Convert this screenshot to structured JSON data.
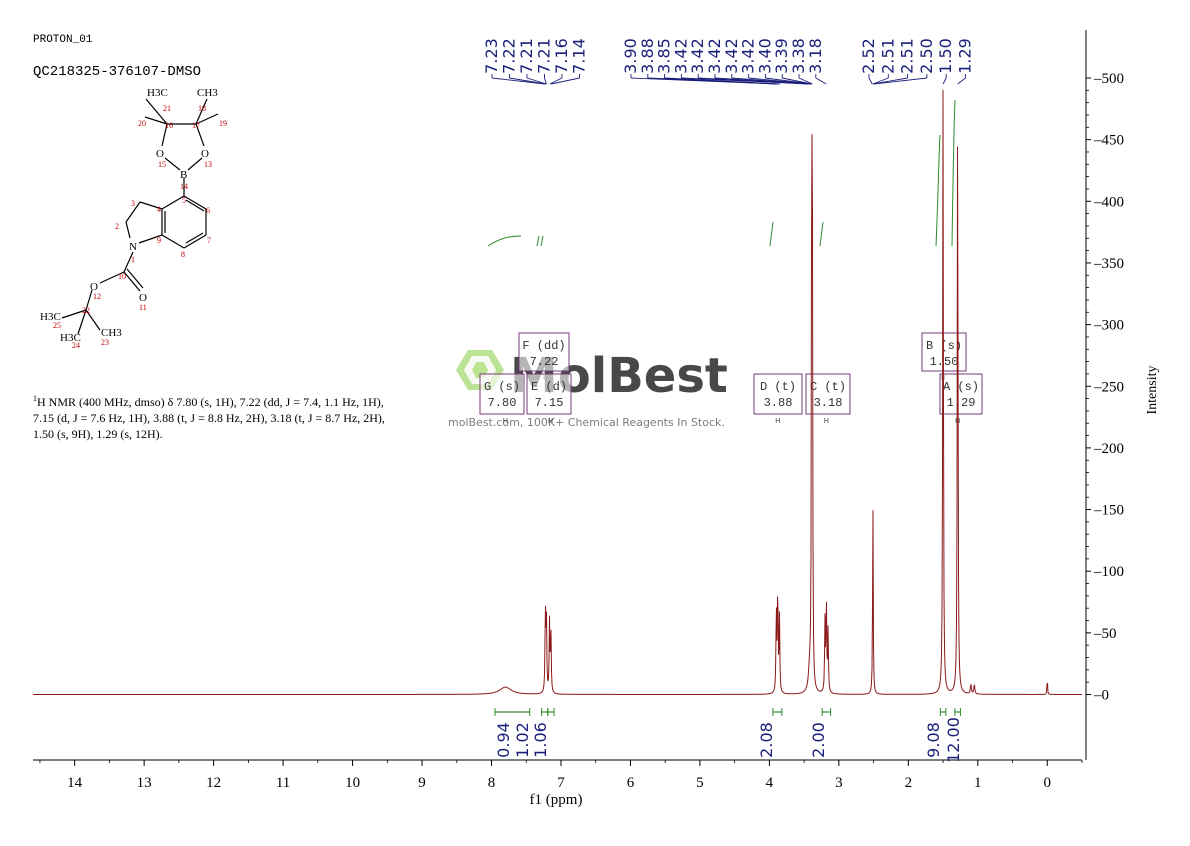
{
  "header": {
    "proton_label": "PROTON_01",
    "sample_id": "QC218325-376107-DMSO"
  },
  "nmr_description": {
    "superscript": "1",
    "text": "H NMR (400 MHz, dmso) δ 7.80 (s, 1H), 7.22 (dd, J = 7.4, 1.1 Hz, 1H), 7.15 (d, J = 7.6 Hz, 1H), 3.88 (t, J = 8.8 Hz, 2H), 3.18 (t, J = 8.7 Hz, 2H), 1.50 (s, 9H), 1.29 (s, 12H)."
  },
  "watermark": {
    "brand": "MolBest",
    "tagline": "molBest.com, 100K+ Chemical Reagents In Stock."
  },
  "structure": {
    "atoms": [
      "H3C",
      "CH3",
      "O",
      "O",
      "B",
      "N",
      "O",
      "O",
      "H3C",
      "H3C",
      "CH3"
    ],
    "numbers": [
      "21",
      "18",
      "20",
      "16",
      "17",
      "19",
      "15",
      "13",
      "14",
      "5",
      "3",
      "4",
      "6",
      "2",
      "9",
      "7",
      "1",
      "8",
      "10",
      "12",
      "11",
      "22",
      "25",
      "24",
      "23"
    ]
  },
  "chart_data": {
    "type": "line",
    "title": "",
    "xlabel": "f1 (ppm)",
    "ylabel": "Intensity",
    "xlim": [
      14.6,
      -0.5
    ],
    "ylim": [
      -56,
      540
    ],
    "x_ticks": [
      "14",
      "13",
      "12",
      "11",
      "10",
      "9",
      "8",
      "7",
      "6",
      "5",
      "4",
      "3",
      "2",
      "1",
      "0"
    ],
    "y_ticks": [
      "0",
      "50",
      "100",
      "150",
      "200",
      "250",
      "300",
      "350",
      "400",
      "450",
      "500"
    ],
    "colors": {
      "spectrum": "#8b1a1a",
      "labels": "#1a1f7a",
      "integral": "#2e8b2e",
      "multiplet": "#7a3a7a"
    },
    "peaks": [
      {
        "ppm": 7.8,
        "height": 6,
        "width": 0.1
      },
      {
        "ppm": 7.225,
        "height": 68,
        "width": 0.006
      },
      {
        "ppm": 7.21,
        "height": 62,
        "width": 0.006
      },
      {
        "ppm": 7.165,
        "height": 58,
        "width": 0.006
      },
      {
        "ppm": 7.145,
        "height": 50,
        "width": 0.006
      },
      {
        "ppm": 3.9,
        "height": 70,
        "width": 0.006
      },
      {
        "ppm": 3.88,
        "height": 88,
        "width": 0.006
      },
      {
        "ppm": 3.855,
        "height": 62,
        "width": 0.006
      },
      {
        "ppm": 3.42,
        "height": 18,
        "width": 0.02
      },
      {
        "ppm": 3.39,
        "height": 500,
        "width": 0.005
      },
      {
        "ppm": 3.38,
        "height": 300,
        "width": 0.005
      },
      {
        "ppm": 3.2,
        "height": 58,
        "width": 0.006
      },
      {
        "ppm": 3.18,
        "height": 76,
        "width": 0.006
      },
      {
        "ppm": 3.155,
        "height": 52,
        "width": 0.006
      },
      {
        "ppm": 2.51,
        "height": 163,
        "width": 0.005
      },
      {
        "ppm": 1.5,
        "height": 500,
        "width": 0.006
      },
      {
        "ppm": 1.29,
        "height": 500,
        "width": 0.006
      },
      {
        "ppm": 1.1,
        "height": 8,
        "width": 0.008
      },
      {
        "ppm": 1.05,
        "height": 8,
        "width": 0.008
      },
      {
        "ppm": 0.0,
        "height": 16,
        "width": 0.004
      }
    ],
    "peak_labels": [
      {
        "label": "7.23",
        "ppm": 7.23
      },
      {
        "label": "7.22",
        "ppm": 7.22
      },
      {
        "label": "7.21",
        "ppm": 7.21
      },
      {
        "label": "7.21",
        "ppm": 7.21
      },
      {
        "label": "7.16",
        "ppm": 7.16
      },
      {
        "label": "7.14",
        "ppm": 7.14
      },
      {
        "label": "3.90",
        "ppm": 3.9
      },
      {
        "label": "3.88",
        "ppm": 3.88
      },
      {
        "label": "3.85",
        "ppm": 3.85
      },
      {
        "label": "3.42",
        "ppm": 3.42
      },
      {
        "label": "3.42",
        "ppm": 3.42
      },
      {
        "label": "3.42",
        "ppm": 3.42
      },
      {
        "label": "3.42",
        "ppm": 3.42
      },
      {
        "label": "3.42",
        "ppm": 3.42
      },
      {
        "label": "3.40",
        "ppm": 3.4
      },
      {
        "label": "3.39",
        "ppm": 3.39
      },
      {
        "label": "3.38",
        "ppm": 3.38
      },
      {
        "label": "3.18",
        "ppm": 3.18
      },
      {
        "label": "2.52",
        "ppm": 2.52
      },
      {
        "label": "2.51",
        "ppm": 2.51
      },
      {
        "label": "2.51",
        "ppm": 2.51
      },
      {
        "label": "2.50",
        "ppm": 2.5
      },
      {
        "label": "1.50",
        "ppm": 1.5
      },
      {
        "label": "1.29",
        "ppm": 1.29
      }
    ],
    "integrals": [
      {
        "label": "0.94",
        "from": 7.95,
        "to": 7.45
      },
      {
        "label": "1.02",
        "from": 7.28,
        "to": 7.19
      },
      {
        "label": "1.06",
        "from": 7.19,
        "to": 7.1
      },
      {
        "label": "2.08",
        "from": 3.95,
        "to": 3.82
      },
      {
        "label": "2.00",
        "from": 3.24,
        "to": 3.12
      },
      {
        "label": "9.08",
        "from": 1.54,
        "to": 1.46
      },
      {
        "label": "12.00",
        "from": 1.33,
        "to": 1.25
      }
    ],
    "multiplets": [
      {
        "id": "F",
        "kind": "(dd)",
        "value": "7.22",
        "ppm": 7.22
      },
      {
        "id": "G",
        "kind": "(s)",
        "value": "7.80",
        "ppm": 7.8
      },
      {
        "id": "E",
        "kind": "(d)",
        "value": "7.15",
        "ppm": 7.15
      },
      {
        "id": "D",
        "kind": "(t)",
        "value": "3.88",
        "ppm": 3.88
      },
      {
        "id": "C",
        "kind": "(t)",
        "value": "3.18",
        "ppm": 3.18
      },
      {
        "id": "B",
        "kind": "(s)",
        "value": "1.50",
        "ppm": 1.5
      },
      {
        "id": "A",
        "kind": "(s)",
        "value": "1.29",
        "ppm": 1.29
      }
    ]
  }
}
